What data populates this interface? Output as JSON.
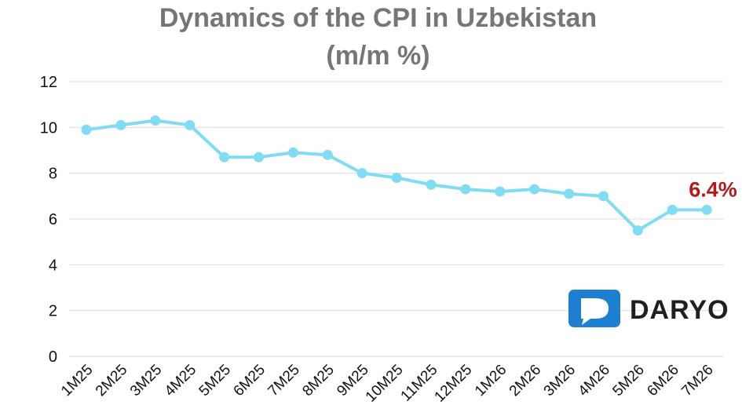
{
  "chart_data": {
    "type": "line",
    "title": "Dynamics of the CPI in Uzbekistan",
    "subtitle": "(m/m %)",
    "categories": [
      "1M25",
      "2M25",
      "3M25",
      "4M25",
      "5M25",
      "6M25",
      "7M25",
      "8M25",
      "9M25",
      "10M25",
      "11M25",
      "12M25",
      "1M26",
      "2M26",
      "3M26",
      "4M26",
      "5M26",
      "6M26",
      "7M26"
    ],
    "series": [
      {
        "values": [
          9.9,
          10.1,
          10.3,
          10.1,
          8.7,
          8.7,
          8.9,
          8.8,
          8.0,
          7.8,
          7.5,
          7.3,
          7.2,
          7.3,
          7.1,
          7.0,
          5.5,
          6.4,
          6.4
        ]
      }
    ],
    "ylim": [
      0,
      12
    ],
    "yticks": [
      0,
      2,
      4,
      6,
      8,
      10,
      12
    ],
    "grid": true,
    "annotation": {
      "text": "6.4%",
      "category": "7M26",
      "color": "#b31b1b"
    },
    "line_color": "#7fdcf2"
  },
  "logo": {
    "text": "DARYO",
    "icon": "daryo-speech-bubble-icon",
    "color": "#1e7fd0"
  }
}
